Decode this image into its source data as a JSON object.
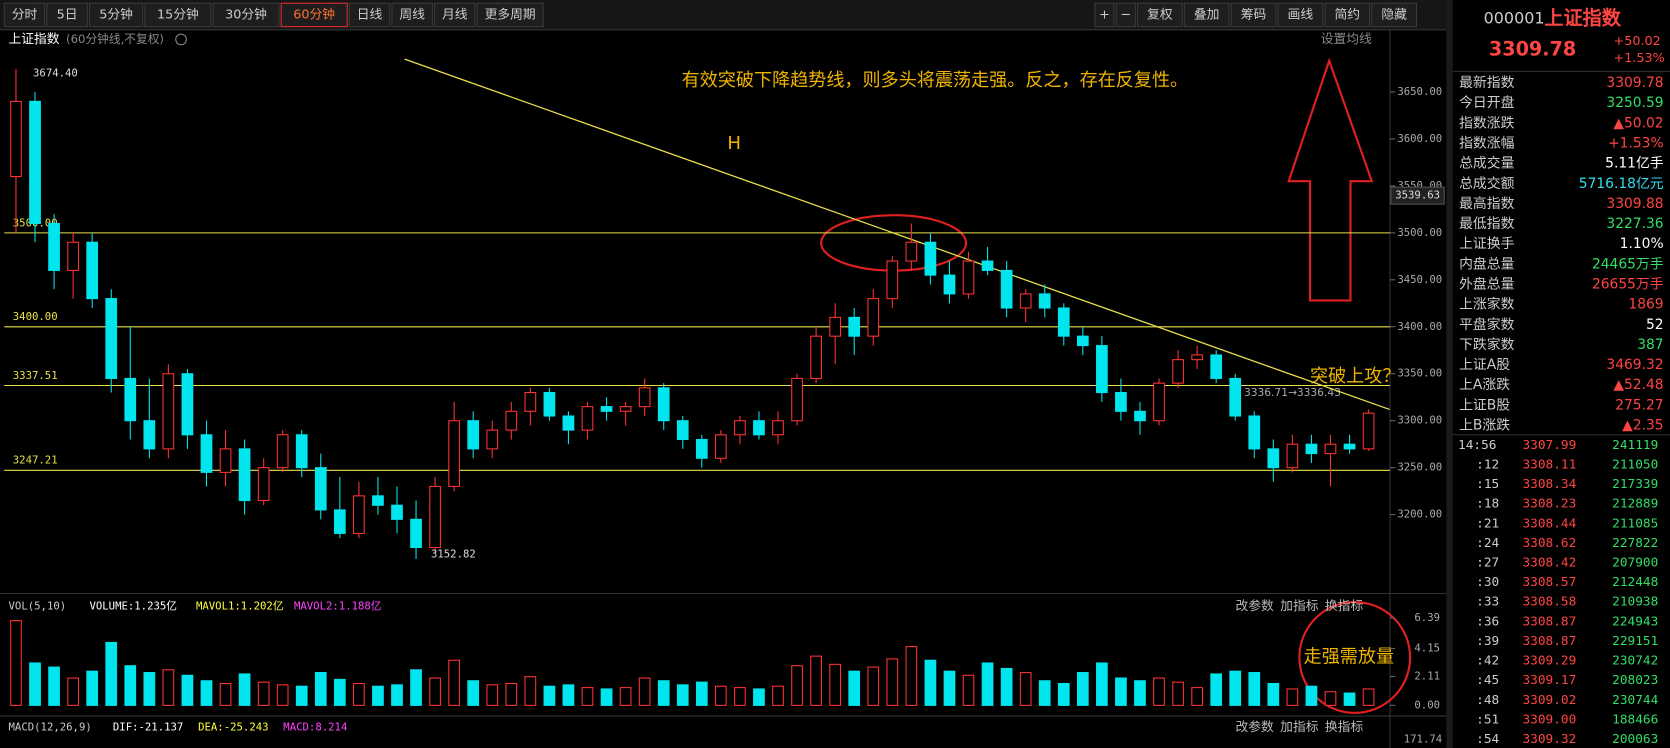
{
  "toolbar": {
    "tabs": [
      "分时",
      "5日",
      "5分钟",
      "15分钟",
      "30分钟",
      "60分钟",
      "日线",
      "周线",
      "月线",
      "更多周期"
    ],
    "active": 5,
    "right_buttons": [
      "+",
      "−",
      "复权",
      "叠加",
      "筹码",
      "画线",
      "简约",
      "隐藏"
    ]
  },
  "chart_data": {
    "type": "candlestick",
    "title": "上证指数",
    "subtitle": "(60分钟线,不复权)",
    "settings_label": "设置均线",
    "ylim": [
      3118.3,
      3691.2
    ],
    "yticks": [
      {
        "value": 3200,
        "label": "3200.00"
      },
      {
        "value": 3250,
        "label": "3250.00"
      },
      {
        "value": 3300,
        "label": "3300.00"
      },
      {
        "value": 3350,
        "label": "3350.00"
      },
      {
        "value": 3400,
        "label": "3400.00"
      },
      {
        "value": 3450,
        "label": "3450.00"
      },
      {
        "value": 3500,
        "label": "3500.00"
      },
      {
        "value": 3550,
        "label": "3550.00"
      },
      {
        "value": 3600,
        "label": "3600.00"
      },
      {
        "value": 3650,
        "label": "3650.00"
      }
    ],
    "up_color": "#ff3232",
    "down_color": "#00e5ee",
    "open": [
      3560,
      3640,
      3510,
      3460,
      3490,
      3430,
      3345,
      3300,
      3270,
      3350,
      3285,
      3245,
      3270,
      3215,
      3250,
      3285,
      3250,
      3205,
      3180,
      3220,
      3210,
      3195,
      3165,
      3230,
      3300,
      3270,
      3290,
      3310,
      3330,
      3305,
      3290,
      3315,
      3310,
      3315,
      3335,
      3300,
      3280,
      3260,
      3285,
      3300,
      3285,
      3300,
      3345,
      3390,
      3410,
      3390,
      3430,
      3470,
      3490,
      3455,
      3435,
      3470,
      3460,
      3420,
      3435,
      3420,
      3390,
      3380,
      3330,
      3310,
      3300,
      3340,
      3365,
      3370,
      3345,
      3305,
      3270,
      3250,
      3275,
      3265,
      3275,
      3270
    ],
    "high": [
      3674.4,
      3650,
      3520,
      3500,
      3500,
      3440,
      3400,
      3345,
      3360,
      3355,
      3300,
      3290,
      3280,
      3260,
      3290,
      3290,
      3265,
      3240,
      3235,
      3240,
      3230,
      3215,
      3240,
      3320,
      3310,
      3300,
      3320,
      3335,
      3335,
      3310,
      3320,
      3325,
      3320,
      3345,
      3340,
      3305,
      3285,
      3290,
      3305,
      3310,
      3310,
      3350,
      3400,
      3425,
      3420,
      3440,
      3475,
      3510,
      3500,
      3470,
      3480,
      3485,
      3470,
      3440,
      3445,
      3425,
      3400,
      3390,
      3345,
      3320,
      3345,
      3375,
      3380,
      3375,
      3350,
      3310,
      3280,
      3285,
      3285,
      3285,
      3285,
      3312
    ],
    "low": [
      3500,
      3490,
      3440,
      3430,
      3420,
      3330,
      3280,
      3260,
      3260,
      3270,
      3230,
      3230,
      3200,
      3210,
      3245,
      3240,
      3195,
      3175,
      3175,
      3200,
      3180,
      3152.82,
      3160,
      3225,
      3260,
      3260,
      3280,
      3295,
      3300,
      3275,
      3280,
      3300,
      3295,
      3305,
      3290,
      3270,
      3250,
      3255,
      3275,
      3280,
      3275,
      3295,
      3340,
      3360,
      3370,
      3380,
      3420,
      3460,
      3445,
      3425,
      3430,
      3455,
      3410,
      3405,
      3410,
      3380,
      3370,
      3320,
      3300,
      3285,
      3295,
      3335,
      3355,
      3340,
      3300,
      3260,
      3235,
      3245,
      3255,
      3230,
      3265,
      3268
    ],
    "close": [
      3640,
      3510,
      3460,
      3490,
      3430,
      3345,
      3300,
      3270,
      3350,
      3285,
      3245,
      3270,
      3215,
      3250,
      3285,
      3250,
      3205,
      3180,
      3220,
      3210,
      3195,
      3165,
      3230,
      3300,
      3270,
      3290,
      3310,
      3330,
      3305,
      3290,
      3315,
      3310,
      3315,
      3335,
      3300,
      3280,
      3260,
      3285,
      3300,
      3285,
      3300,
      3345,
      3390,
      3410,
      3390,
      3430,
      3470,
      3490,
      3455,
      3435,
      3470,
      3460,
      3420,
      3435,
      3420,
      3390,
      3380,
      3330,
      3310,
      3300,
      3340,
      3365,
      3370,
      3345,
      3305,
      3270,
      3250,
      3275,
      3265,
      3275,
      3270,
      3308
    ],
    "high_label": {
      "value": 3674.4,
      "label": "3674.40"
    },
    "low_label": {
      "value": 3152.82,
      "label": "3152.82"
    },
    "levels": [
      {
        "value": 3500,
        "label": "3500.00"
      },
      {
        "value": 3400,
        "label": "3400.00"
      },
      {
        "value": 3337.51,
        "label": "3337.51"
      },
      {
        "value": 3247.21,
        "label": "3247.21"
      }
    ],
    "level_color": "#e8e04a",
    "cursor_price": {
      "value": 3539.63,
      "label": "3539.63"
    },
    "trendline": {
      "x": [
        20.4,
        72.1
      ],
      "y": [
        3685,
        3312
      ],
      "color": "#e8e04a"
    },
    "trend_label": "3336.71→3336.43",
    "annotations": [
      "有效突破下降趋势线，则多头将震荡走强。反之，存在反复性。",
      "H",
      "突破上攻？",
      "走强需放量"
    ]
  },
  "volume": {
    "name": "VOL(5,10)",
    "volume": "VOLUME:1.235亿",
    "mavol1": "MAVOL1:1.202亿",
    "mavol2": "MAVOL2:1.188亿",
    "buttons": [
      "改参数",
      "加指标",
      "换指标"
    ],
    "ylim": [
      0,
      6.39
    ],
    "yticks": [
      {
        "value": 0,
        "label": "0.00"
      },
      {
        "value": 2.11,
        "label": "2.11"
      },
      {
        "value": 4.15,
        "label": "4.15"
      },
      {
        "value": 6.39,
        "label": "6.39"
      }
    ],
    "values": [
      6.2,
      3.1,
      2.8,
      2.0,
      2.5,
      4.6,
      2.9,
      2.4,
      2.6,
      2.2,
      1.8,
      1.6,
      2.3,
      1.7,
      1.5,
      1.4,
      2.4,
      1.9,
      1.6,
      1.4,
      1.5,
      2.6,
      2.0,
      3.3,
      1.8,
      1.5,
      1.6,
      2.1,
      1.4,
      1.5,
      1.3,
      1.2,
      1.3,
      2.0,
      1.8,
      1.5,
      1.7,
      1.4,
      1.3,
      1.2,
      1.4,
      2.9,
      3.6,
      3.0,
      2.5,
      2.8,
      3.4,
      4.3,
      3.3,
      2.5,
      2.2,
      3.1,
      2.7,
      2.4,
      1.8,
      1.6,
      2.4,
      3.1,
      2.0,
      1.8,
      2.0,
      1.7,
      1.3,
      2.3,
      2.5,
      2.4,
      1.6,
      1.2,
      1.4,
      1.0,
      0.9,
      1.2
    ]
  },
  "macd": {
    "name": "MACD(12,26,9)",
    "dif": "DIF:-21.137",
    "dea": "DEA:-25.243",
    "macd": "MACD:8.214",
    "buttons": [
      "改参数",
      "加指标",
      "换指标"
    ],
    "top": "171.74"
  },
  "quote": {
    "code": "000001",
    "name": "上证指数",
    "price": "3309.78",
    "change": "+50.02",
    "pct": "+1.53%",
    "stats": [
      {
        "label": "最新指数",
        "value": "3309.78",
        "color": "#ff4444"
      },
      {
        "label": "今日开盘",
        "value": "3250.59",
        "color": "#33dd66"
      },
      {
        "label": "指数涨跌",
        "value": "▲50.02",
        "color": "#ff4444"
      },
      {
        "label": "指数涨幅",
        "value": "+1.53%",
        "color": "#ff4444"
      },
      {
        "label": "总成交量",
        "value": "5.11亿手",
        "color": "#ffffff"
      },
      {
        "label": "总成交额",
        "value": "5716.18亿元",
        "color": "#33ddee"
      },
      {
        "label": "最高指数",
        "value": "3309.88",
        "color": "#ff4444"
      },
      {
        "label": "最低指数",
        "value": "3227.36",
        "color": "#33dd66"
      },
      {
        "label": "上证换手",
        "value": "1.10%",
        "color": "#ffffff"
      },
      {
        "label": "内盘总量",
        "value": "24465万手",
        "color": "#33dd66"
      },
      {
        "label": "外盘总量",
        "value": "26655万手",
        "color": "#ff4444"
      },
      {
        "label": "上涨家数",
        "value": "1869",
        "color": "#ff4444"
      },
      {
        "label": "平盘家数",
        "value": "52",
        "color": "#ffffff"
      },
      {
        "label": "下跌家数",
        "value": "387",
        "color": "#33dd66"
      },
      {
        "label": "上证A股",
        "value": "3469.32",
        "color": "#ff4444"
      },
      {
        "label": "上A涨跌",
        "value": "▲52.48",
        "color": "#ff4444"
      },
      {
        "label": "上证B股",
        "value": "275.27",
        "color": "#ff4444"
      },
      {
        "label": "上B涨跌",
        "value": "▲2.35",
        "color": "#ff4444"
      }
    ],
    "ticks": [
      [
        "14:56",
        "3307.99",
        "241119"
      ],
      [
        ":12",
        "3308.11",
        "211050"
      ],
      [
        ":15",
        "3308.34",
        "217339"
      ],
      [
        ":18",
        "3308.23",
        "212889"
      ],
      [
        ":21",
        "3308.44",
        "211085"
      ],
      [
        ":24",
        "3308.62",
        "227822"
      ],
      [
        ":27",
        "3308.42",
        "207900"
      ],
      [
        ":30",
        "3308.57",
        "212448"
      ],
      [
        ":33",
        "3308.58",
        "210938"
      ],
      [
        ":36",
        "3308.87",
        "224943"
      ],
      [
        ":39",
        "3308.87",
        "229151"
      ],
      [
        ":42",
        "3309.29",
        "230742"
      ],
      [
        ":45",
        "3309.17",
        "208023"
      ],
      [
        ":48",
        "3309.02",
        "230744"
      ],
      [
        ":51",
        "3309.00",
        "188466"
      ],
      [
        ":54",
        "3309.32",
        "200063"
      ]
    ]
  }
}
